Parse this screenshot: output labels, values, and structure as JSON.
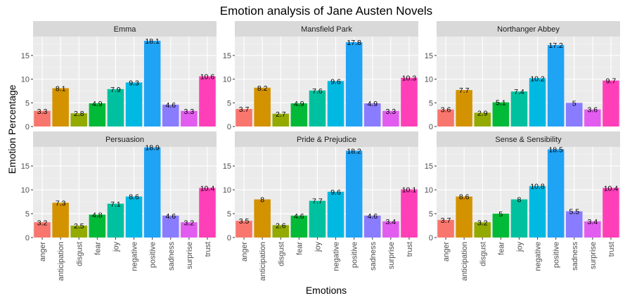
{
  "chart_data": {
    "type": "bar",
    "title": "Emotion analysis of Jane Austen Novels",
    "xlabel": "Emotions",
    "ylabel": "Emotion Percentage",
    "ylim": [
      0,
      19
    ],
    "yticks": [
      0,
      5,
      10,
      15
    ],
    "grid": true,
    "legend": "none",
    "facet_layout": "2 rows x 3 columns",
    "categories": [
      "anger",
      "anticipation",
      "disgust",
      "fear",
      "joy",
      "negative",
      "positive",
      "sadness",
      "surprise",
      "trust"
    ],
    "colors": [
      "#F8766D",
      "#D39200",
      "#93AA00",
      "#00BA38",
      "#00C19F",
      "#00B9E3",
      "#1FA3F5",
      "#8A7CFF",
      "#E25CF0",
      "#FF3FB8"
    ],
    "panels": [
      {
        "name": "Emma",
        "values": [
          3.3,
          8.1,
          2.8,
          4.9,
          7.9,
          9.3,
          18.1,
          4.6,
          3.3,
          10.6
        ],
        "labels": [
          "3.3",
          "8.1",
          "2.8",
          "4.9",
          "7.9",
          "9.3",
          "18.1",
          "4.6",
          "3.3",
          "10.6"
        ]
      },
      {
        "name": "Mansfield Park",
        "values": [
          3.7,
          8.2,
          2.7,
          4.9,
          7.6,
          9.6,
          17.8,
          4.9,
          3.3,
          10.3
        ],
        "labels": [
          "3.7",
          "8.2",
          "2.7",
          "4.9",
          "7.6",
          "9.6",
          "17.8",
          "4.9",
          "3.3",
          "10.3"
        ]
      },
      {
        "name": "Northanger Abbey",
        "values": [
          3.6,
          7.7,
          2.9,
          5.1,
          7.4,
          10.2,
          17.2,
          5,
          3.6,
          9.7
        ],
        "labels": [
          "3.6",
          "7.7",
          "2.9",
          "5.1",
          "7.4",
          "10.2",
          "17.2",
          "5",
          "3.6",
          "9.7"
        ]
      },
      {
        "name": "Persuasion",
        "values": [
          3.2,
          7.3,
          2.5,
          4.8,
          7.1,
          8.6,
          18.9,
          4.6,
          3.2,
          10.4
        ],
        "labels": [
          "3.2",
          "7.3",
          "2.5",
          "4.8",
          "7.1",
          "8.6",
          "18.9",
          "4.6",
          "3.2",
          "10.4"
        ]
      },
      {
        "name": "Pride & Prejudice",
        "values": [
          3.5,
          8,
          2.6,
          4.6,
          7.7,
          9.6,
          18.2,
          4.6,
          3.4,
          10.1
        ],
        "labels": [
          "3.5",
          "8",
          "2.6",
          "4.6",
          "7.7",
          "9.6",
          "18.2",
          "4.6",
          "3.4",
          "10.1"
        ]
      },
      {
        "name": "Sense & Sensibility",
        "values": [
          3.7,
          8.6,
          3.2,
          5,
          8,
          10.8,
          18.5,
          5.5,
          3.4,
          10.4
        ],
        "labels": [
          "3.7",
          "8.6",
          "3.2",
          "5",
          "8",
          "10.8",
          "18.5",
          "5.5",
          "3.4",
          "10.4"
        ]
      }
    ]
  }
}
